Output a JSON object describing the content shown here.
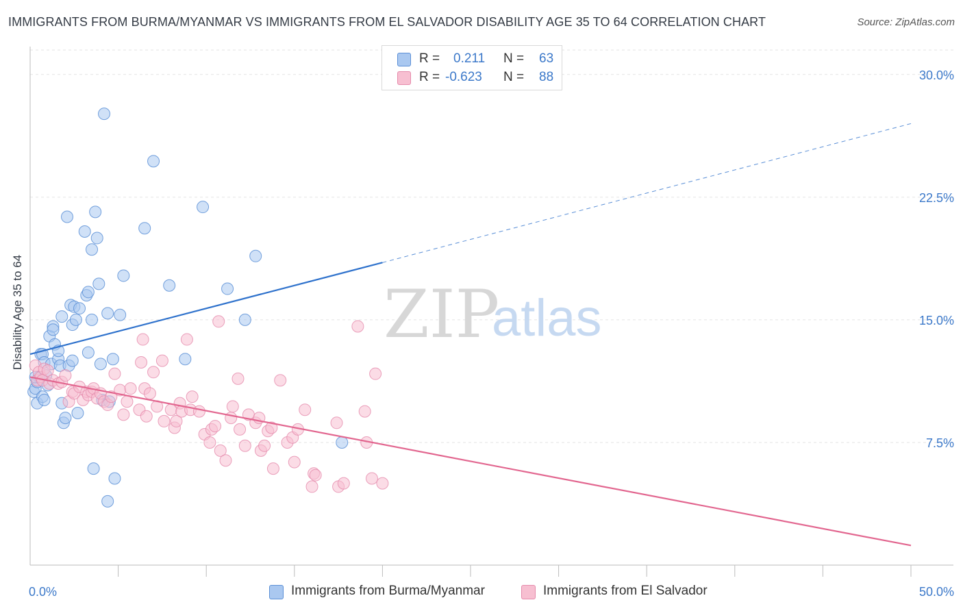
{
  "header": {
    "title": "IMMIGRANTS FROM BURMA/MYANMAR VS IMMIGRANTS FROM EL SALVADOR DISABILITY AGE 35 TO 64 CORRELATION CHART",
    "source": "Source: ZipAtlas.com"
  },
  "watermark": {
    "zip": "ZIP",
    "atlas": "atlas"
  },
  "legend": {
    "rows": [
      {
        "r_label": "R =",
        "r_value": "0.211",
        "n_label": "N =",
        "n_value": "63"
      },
      {
        "r_label": "R =",
        "r_value": "-0.623",
        "n_label": "N =",
        "n_value": "88"
      }
    ]
  },
  "bottom_legend": {
    "items": [
      {
        "label": "Immigrants from Burma/Myanmar"
      },
      {
        "label": "Immigrants from El Salvador"
      }
    ]
  },
  "chart_data": {
    "type": "scatter",
    "title": "IMMIGRANTS FROM BURMA/MYANMAR VS IMMIGRANTS FROM EL SALVADOR DISABILITY AGE 35 TO 64 CORRELATION CHART",
    "xlabel": "",
    "ylabel": "Disability Age 35 to 64",
    "xlim": [
      0,
      50
    ],
    "ylim": [
      0,
      31.5
    ],
    "x_tick_labels": [
      "0.0%",
      "50.0%"
    ],
    "y_ticks": [
      7.5,
      15.0,
      22.5,
      30.0
    ],
    "y_tick_labels": [
      "7.5%",
      "15.0%",
      "22.5%",
      "30.0%"
    ],
    "grid": true,
    "legend_position": "top-center",
    "colors": {
      "burma_fill": "#aac8f0",
      "burma_stroke": "#5b8fd6",
      "burma_line": "#2f72cc",
      "salvador_fill": "#f7bfd1",
      "salvador_stroke": "#e58aab",
      "salvador_line": "#e2668f",
      "tick_label": "#3b78c9",
      "grid": "#e3e3e3"
    },
    "series": [
      {
        "name": "Immigrants from Burma/Myanmar",
        "r": 0.211,
        "n": 63,
        "trend": {
          "x0": 0,
          "y0": 12.9,
          "x1": 20,
          "y1": 18.5,
          "dash_to_x": 50,
          "dash_to_y": 27.0
        },
        "points": [
          [
            0.2,
            10.6
          ],
          [
            0.3,
            10.8
          ],
          [
            0.4,
            11.2
          ],
          [
            0.4,
            9.9
          ],
          [
            0.5,
            11.5
          ],
          [
            0.6,
            12.9
          ],
          [
            0.7,
            10.3
          ],
          [
            0.7,
            12.9
          ],
          [
            0.8,
            10.1
          ],
          [
            0.8,
            12.4
          ],
          [
            0.9,
            11.6
          ],
          [
            1.0,
            11.0
          ],
          [
            1.1,
            14.0
          ],
          [
            1.2,
            12.3
          ],
          [
            1.3,
            14.6
          ],
          [
            1.3,
            14.4
          ],
          [
            1.4,
            13.5
          ],
          [
            1.6,
            12.6
          ],
          [
            1.6,
            13.1
          ],
          [
            1.7,
            12.2
          ],
          [
            1.8,
            9.9
          ],
          [
            1.8,
            15.2
          ],
          [
            1.9,
            8.7
          ],
          [
            2.0,
            9.0
          ],
          [
            2.1,
            21.3
          ],
          [
            2.2,
            12.2
          ],
          [
            2.3,
            15.9
          ],
          [
            2.4,
            14.7
          ],
          [
            2.4,
            12.5
          ],
          [
            2.5,
            15.8
          ],
          [
            2.6,
            15.0
          ],
          [
            2.7,
            9.3
          ],
          [
            2.8,
            15.7
          ],
          [
            3.1,
            20.4
          ],
          [
            3.2,
            16.5
          ],
          [
            3.3,
            16.7
          ],
          [
            3.3,
            13.0
          ],
          [
            3.5,
            19.3
          ],
          [
            3.5,
            15.0
          ],
          [
            3.6,
            5.9
          ],
          [
            3.7,
            21.6
          ],
          [
            3.8,
            20.0
          ],
          [
            3.9,
            17.2
          ],
          [
            4.0,
            12.3
          ],
          [
            4.1,
            10.1
          ],
          [
            4.2,
            27.6
          ],
          [
            4.4,
            3.9
          ],
          [
            4.4,
            15.4
          ],
          [
            4.5,
            10.0
          ],
          [
            4.7,
            12.6
          ],
          [
            4.8,
            5.3
          ],
          [
            5.1,
            15.3
          ],
          [
            5.3,
            17.7
          ],
          [
            6.5,
            20.6
          ],
          [
            7.0,
            24.7
          ],
          [
            7.9,
            17.1
          ],
          [
            8.8,
            12.6
          ],
          [
            9.8,
            21.9
          ],
          [
            11.2,
            16.9
          ],
          [
            12.2,
            15.0
          ],
          [
            12.8,
            18.9
          ],
          [
            17.7,
            7.5
          ],
          [
            0.3,
            11.5
          ]
        ]
      },
      {
        "name": "Immigrants from El Salvador",
        "r": -0.623,
        "n": 88,
        "trend": {
          "x0": 0,
          "y0": 11.5,
          "x1": 50,
          "y1": 1.2
        },
        "points": [
          [
            0.3,
            12.2
          ],
          [
            0.4,
            11.3
          ],
          [
            0.5,
            11.8
          ],
          [
            0.6,
            11.5
          ],
          [
            0.7,
            11.3
          ],
          [
            0.8,
            12.0
          ],
          [
            1.0,
            11.9
          ],
          [
            1.1,
            11.1
          ],
          [
            1.3,
            11.3
          ],
          [
            1.6,
            11.1
          ],
          [
            1.8,
            11.2
          ],
          [
            2.0,
            11.6
          ],
          [
            2.2,
            10.0
          ],
          [
            2.4,
            10.6
          ],
          [
            2.5,
            10.5
          ],
          [
            2.8,
            10.9
          ],
          [
            3.0,
            10.1
          ],
          [
            3.2,
            10.6
          ],
          [
            3.3,
            10.4
          ],
          [
            3.5,
            10.6
          ],
          [
            3.6,
            10.8
          ],
          [
            3.8,
            10.2
          ],
          [
            4.0,
            10.5
          ],
          [
            4.2,
            10.0
          ],
          [
            4.4,
            9.8
          ],
          [
            4.6,
            10.3
          ],
          [
            4.8,
            11.7
          ],
          [
            5.1,
            10.7
          ],
          [
            5.3,
            9.2
          ],
          [
            5.5,
            10.0
          ],
          [
            5.7,
            10.8
          ],
          [
            6.2,
            9.5
          ],
          [
            6.3,
            12.4
          ],
          [
            6.4,
            13.8
          ],
          [
            6.5,
            10.8
          ],
          [
            6.6,
            9.1
          ],
          [
            6.8,
            10.5
          ],
          [
            7.0,
            11.8
          ],
          [
            7.2,
            9.7
          ],
          [
            7.5,
            12.5
          ],
          [
            7.6,
            8.8
          ],
          [
            8.0,
            9.5
          ],
          [
            8.2,
            8.4
          ],
          [
            8.3,
            8.8
          ],
          [
            8.5,
            9.9
          ],
          [
            8.6,
            9.4
          ],
          [
            8.9,
            13.8
          ],
          [
            9.1,
            9.5
          ],
          [
            9.2,
            10.3
          ],
          [
            9.6,
            9.4
          ],
          [
            9.9,
            8.0
          ],
          [
            10.2,
            7.5
          ],
          [
            10.3,
            8.3
          ],
          [
            10.5,
            8.5
          ],
          [
            10.7,
            14.9
          ],
          [
            10.8,
            7.0
          ],
          [
            11.1,
            6.4
          ],
          [
            11.4,
            9.0
          ],
          [
            11.5,
            9.7
          ],
          [
            11.8,
            11.4
          ],
          [
            11.9,
            8.3
          ],
          [
            12.2,
            7.3
          ],
          [
            12.4,
            9.2
          ],
          [
            12.8,
            8.7
          ],
          [
            13.0,
            9.0
          ],
          [
            13.1,
            7.0
          ],
          [
            13.3,
            7.3
          ],
          [
            13.5,
            8.2
          ],
          [
            13.7,
            8.4
          ],
          [
            13.8,
            5.9
          ],
          [
            14.2,
            11.3
          ],
          [
            14.6,
            7.5
          ],
          [
            14.9,
            7.8
          ],
          [
            15.0,
            6.3
          ],
          [
            15.2,
            8.3
          ],
          [
            15.6,
            9.5
          ],
          [
            16.0,
            4.8
          ],
          [
            16.1,
            5.6
          ],
          [
            16.2,
            5.5
          ],
          [
            17.4,
            8.7
          ],
          [
            17.5,
            4.8
          ],
          [
            17.8,
            5.0
          ],
          [
            18.6,
            14.6
          ],
          [
            19.0,
            9.4
          ],
          [
            19.1,
            7.5
          ],
          [
            19.4,
            5.3
          ],
          [
            19.6,
            11.7
          ],
          [
            20.0,
            5.0
          ]
        ]
      }
    ]
  }
}
